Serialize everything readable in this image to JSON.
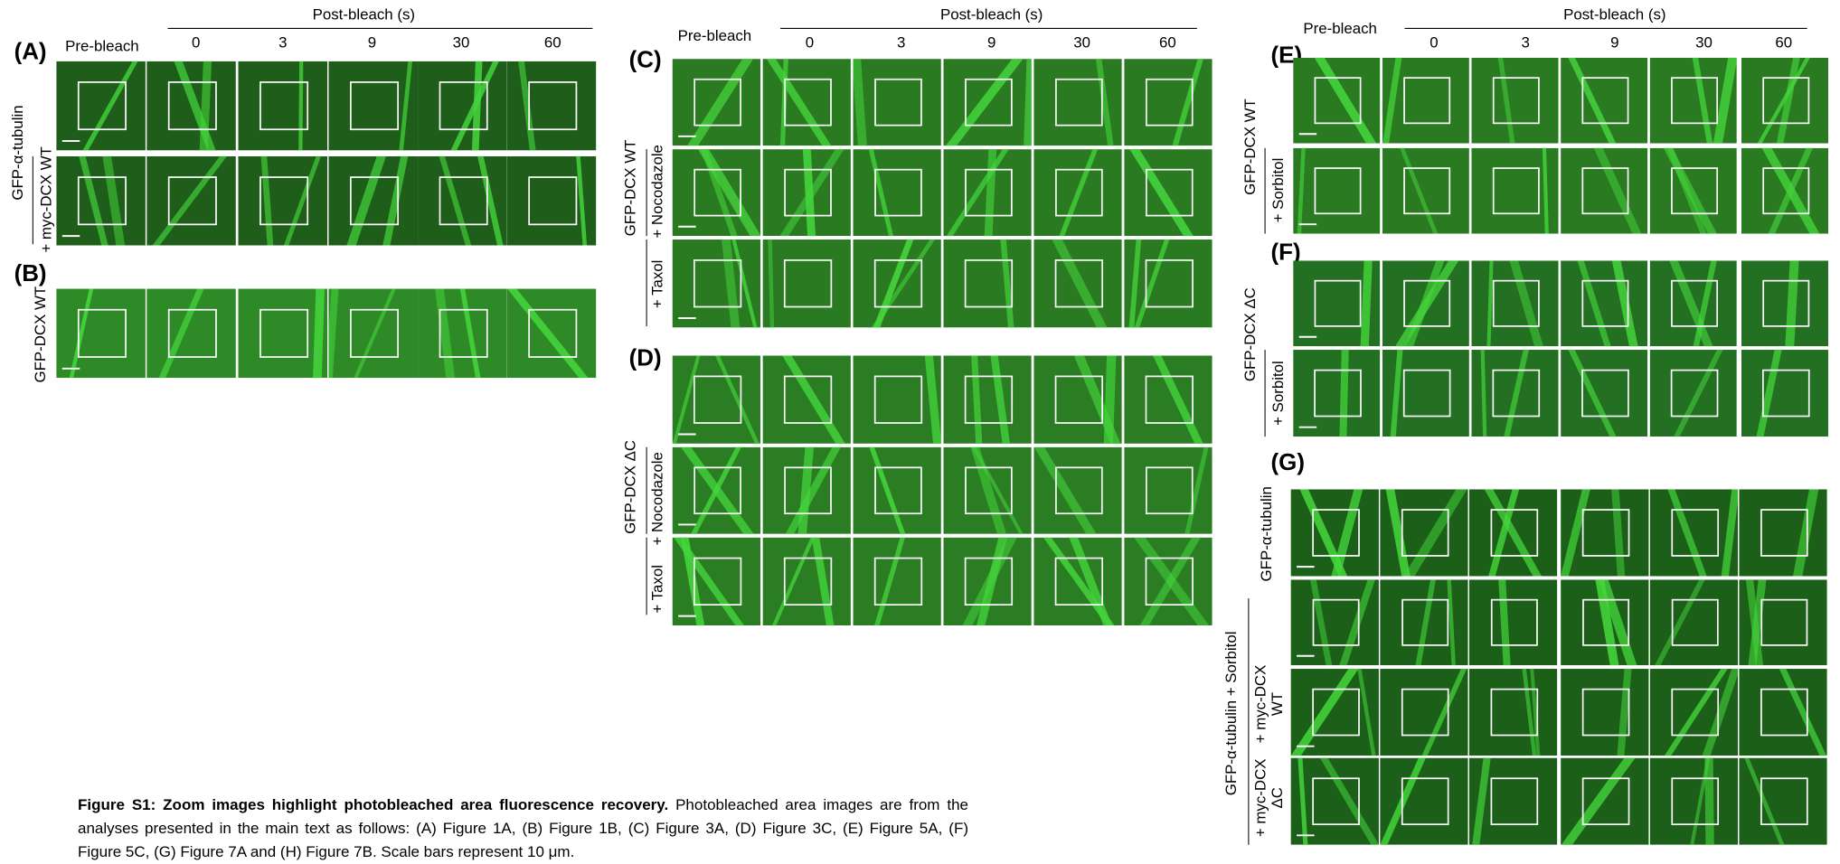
{
  "headers": [
    {
      "pre": "Pre-bleach",
      "post": "Post-bleach (s)",
      "times": [
        "0",
        "3",
        "9",
        "30",
        "60"
      ]
    },
    {
      "pre": "Pre-bleach",
      "post": "Post-bleach (s)",
      "times": [
        "0",
        "3",
        "9",
        "30",
        "60"
      ]
    },
    {
      "pre": "Pre-bleach",
      "post": "Post-bleach (s)",
      "times": [
        "0",
        "3",
        "9",
        "30",
        "60"
      ]
    }
  ],
  "panels": [
    {
      "label": "(A)",
      "group_label": "GFP-α-tubulin",
      "row_labels": [
        [
          "+ myc-DCX WT"
        ]
      ]
    },
    {
      "label": "(B)",
      "group_label": "GFP-DCX WT"
    },
    {
      "label": "(C)",
      "group_label": "GFP-DCX WT",
      "row_labels": [
        [
          "+ Nocodazole"
        ],
        [
          "+ Taxol"
        ]
      ]
    },
    {
      "label": "(D)",
      "group_label": "GFP-DCX ΔC",
      "row_labels": [
        [
          "+ Nocodazole"
        ],
        [
          "+ Taxol"
        ]
      ]
    },
    {
      "label": "(E)",
      "group_label": "GFP-DCX WT",
      "row_labels": [
        [
          "+ Sorbitol"
        ]
      ]
    },
    {
      "label": "(F)",
      "group_label": "GFP-DCX ΔC",
      "row_labels": [
        [
          "+ Sorbitol"
        ]
      ]
    },
    {
      "label": "(G)",
      "group_label": "GFP-α-tubulin + Sorbitol",
      "row_labels": [
        [
          "GFP-α-tubulin"
        ],
        [
          "+ myc-DCX",
          "WT"
        ],
        [
          "+ myc-DCX",
          "ΔC"
        ]
      ]
    }
  ],
  "caption": {
    "title": "Figure S1: Zoom images highlight photobleached area fluorescence recovery.",
    "text": "Photobleached area images are from the analyses presented in the main text as follows: (A) Figure 1A, (B) Figure 1B, (C) Figure 3A, (D) Figure 3C, (E) Figure 5A, (F) Figure 5C, (G) Figure 7A and (H) Figure 7B. Scale bars represent 10 μm."
  }
}
